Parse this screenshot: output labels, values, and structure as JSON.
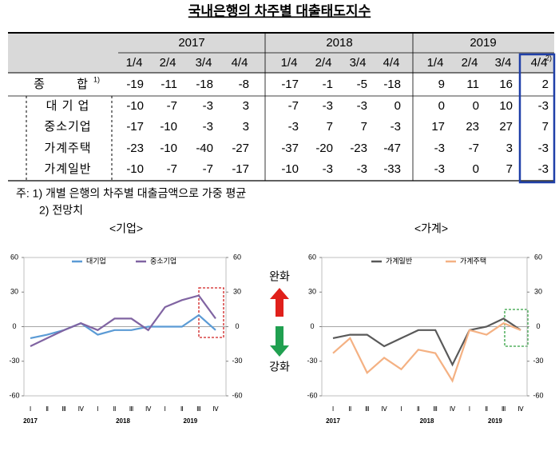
{
  "title": "국내은행의 차주별 대출태도지수",
  "table": {
    "years": [
      "2017",
      "2018",
      "2019"
    ],
    "quarters": [
      "1/4",
      "2/4",
      "3/4",
      "4/4",
      "1/4",
      "2/4",
      "3/4",
      "4/4",
      "1/4",
      "2/4",
      "3/4",
      "4/4"
    ],
    "quarter_note": "2)",
    "rows": [
      {
        "label": "종 합",
        "note": "1)",
        "values": [
          -19,
          -11,
          -18,
          -8,
          -17,
          -1,
          -5,
          -18,
          9,
          11,
          16,
          2
        ]
      },
      {
        "label": "대 기 업",
        "values": [
          -10,
          -7,
          -3,
          3,
          -7,
          -3,
          -3,
          0,
          0,
          0,
          10,
          -3
        ]
      },
      {
        "label": "중소기업",
        "values": [
          -17,
          -10,
          -3,
          3,
          -3,
          7,
          7,
          -3,
          17,
          23,
          27,
          7
        ]
      },
      {
        "label": "가계주택",
        "values": [
          -23,
          -10,
          -40,
          -27,
          -37,
          -20,
          -23,
          -47,
          -3,
          -7,
          3,
          -3
        ]
      },
      {
        "label": "가계일반",
        "values": [
          -10,
          -7,
          -7,
          -17,
          -10,
          -3,
          -3,
          -33,
          -3,
          0,
          7,
          -3
        ]
      }
    ]
  },
  "notes": [
    "주: 1) 개별 은행의 차주별 대출금액으로 가중 평균",
    "2) 전망치"
  ],
  "arrow_labels": {
    "up": "완화",
    "down": "강화"
  },
  "chart_data": [
    {
      "type": "line",
      "title": "<기업>",
      "categories": [
        "Ⅰ",
        "Ⅱ",
        "Ⅲ",
        "Ⅳ",
        "Ⅰ",
        "Ⅱ",
        "Ⅲ",
        "Ⅳ",
        "Ⅰ",
        "Ⅱ",
        "Ⅲ",
        "Ⅳ"
      ],
      "year_labels": [
        "2017",
        "2018",
        "2019"
      ],
      "ylim": [
        -60,
        60
      ],
      "yticks": [
        -60,
        -30,
        0,
        30,
        60
      ],
      "y2lim": [
        -60,
        60
      ],
      "y2ticks": [
        -60,
        -30,
        0,
        30,
        60
      ],
      "series": [
        {
          "name": "대기업",
          "color": "#5b9bd5",
          "values": [
            -10,
            -7,
            -3,
            3,
            -7,
            -3,
            -3,
            0,
            0,
            0,
            10,
            -3
          ]
        },
        {
          "name": "중소기업",
          "color": "#8064a2",
          "values": [
            -17,
            -10,
            -3,
            3,
            -3,
            7,
            7,
            -3,
            17,
            23,
            27,
            7
          ]
        }
      ]
    },
    {
      "type": "line",
      "title": "<가계>",
      "categories": [
        "Ⅰ",
        "Ⅱ",
        "Ⅲ",
        "Ⅳ",
        "Ⅰ",
        "Ⅱ",
        "Ⅲ",
        "Ⅳ",
        "Ⅰ",
        "Ⅱ",
        "Ⅲ",
        "Ⅳ"
      ],
      "year_labels": [
        "2017",
        "2018",
        "2019"
      ],
      "ylim": [
        -60,
        60
      ],
      "yticks": [
        -60,
        -30,
        0,
        30,
        60
      ],
      "y2lim": [
        -60,
        60
      ],
      "y2ticks": [
        -60,
        -30,
        0,
        30,
        60
      ],
      "series": [
        {
          "name": "가계일반",
          "color": "#595959",
          "values": [
            -10,
            -7,
            -7,
            -17,
            -10,
            -3,
            -3,
            -33,
            -3,
            0,
            7,
            -3
          ]
        },
        {
          "name": "가계주택",
          "color": "#f4b183",
          "values": [
            -23,
            -10,
            -40,
            -27,
            -37,
            -20,
            -23,
            -47,
            -3,
            -7,
            3,
            -3
          ]
        }
      ]
    }
  ]
}
